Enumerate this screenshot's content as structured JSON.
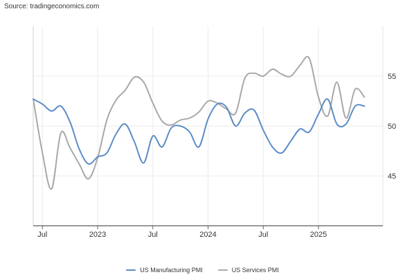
{
  "source": "Source: tradingeconomics.com",
  "colors": {
    "manufacturing": "#5b8cc6",
    "services": "#a8a8a8",
    "grid": "#ebebeb",
    "axis": "#333333"
  },
  "chart_data": {
    "type": "line",
    "title": "",
    "xlabel": "",
    "ylabel": "",
    "x_tick_labels": [
      "Jul",
      "2023",
      "Jul",
      "2024",
      "Jul",
      "2025"
    ],
    "x_tick_dates": [
      "2022-07",
      "2023-01",
      "2023-07",
      "2024-01",
      "2024-07",
      "2025-01"
    ],
    "y_ticks": [
      45,
      50,
      55
    ],
    "ylim": [
      40,
      60
    ],
    "xlim": [
      "2022-06",
      "2025-08"
    ],
    "grid": true,
    "legend_position": "bottom",
    "x": [
      "2022-06",
      "2022-07",
      "2022-08",
      "2022-09",
      "2022-10",
      "2022-11",
      "2022-12",
      "2023-01",
      "2023-02",
      "2023-03",
      "2023-04",
      "2023-05",
      "2023-06",
      "2023-07",
      "2023-08",
      "2023-09",
      "2023-10",
      "2023-11",
      "2023-12",
      "2024-01",
      "2024-02",
      "2024-03",
      "2024-04",
      "2024-05",
      "2024-06",
      "2024-07",
      "2024-08",
      "2024-09",
      "2024-10",
      "2024-11",
      "2024-12",
      "2025-01",
      "2025-02",
      "2025-03",
      "2025-04",
      "2025-05",
      "2025-06",
      "2025-07",
      "2025-08"
    ],
    "series": [
      {
        "name": "US Manufacturing PMI",
        "color_key": "manufacturing",
        "values": [
          52.7,
          52.2,
          51.5,
          52.0,
          50.4,
          47.7,
          46.2,
          46.9,
          47.3,
          49.2,
          50.2,
          48.4,
          46.3,
          49.0,
          47.9,
          49.8,
          50.0,
          49.4,
          47.9,
          50.7,
          52.2,
          51.9,
          50.0,
          51.3,
          51.6,
          49.6,
          47.9,
          47.3,
          48.5,
          49.7,
          49.4,
          51.2,
          52.7,
          50.2,
          50.2,
          52.0,
          52.0,
          null,
          null
        ]
      },
      {
        "name": "US Services PMI",
        "color_key": "services",
        "values": [
          52.7,
          47.3,
          43.7,
          49.3,
          47.8,
          46.2,
          44.7,
          46.8,
          50.6,
          52.6,
          53.6,
          54.9,
          54.4,
          52.3,
          50.5,
          50.1,
          50.6,
          50.8,
          51.4,
          52.5,
          52.3,
          51.7,
          51.3,
          54.8,
          55.3,
          55.0,
          55.7,
          55.2,
          55.0,
          56.1,
          56.8,
          52.9,
          51.0,
          54.4,
          50.8,
          53.7,
          52.9,
          null,
          null
        ]
      }
    ]
  }
}
